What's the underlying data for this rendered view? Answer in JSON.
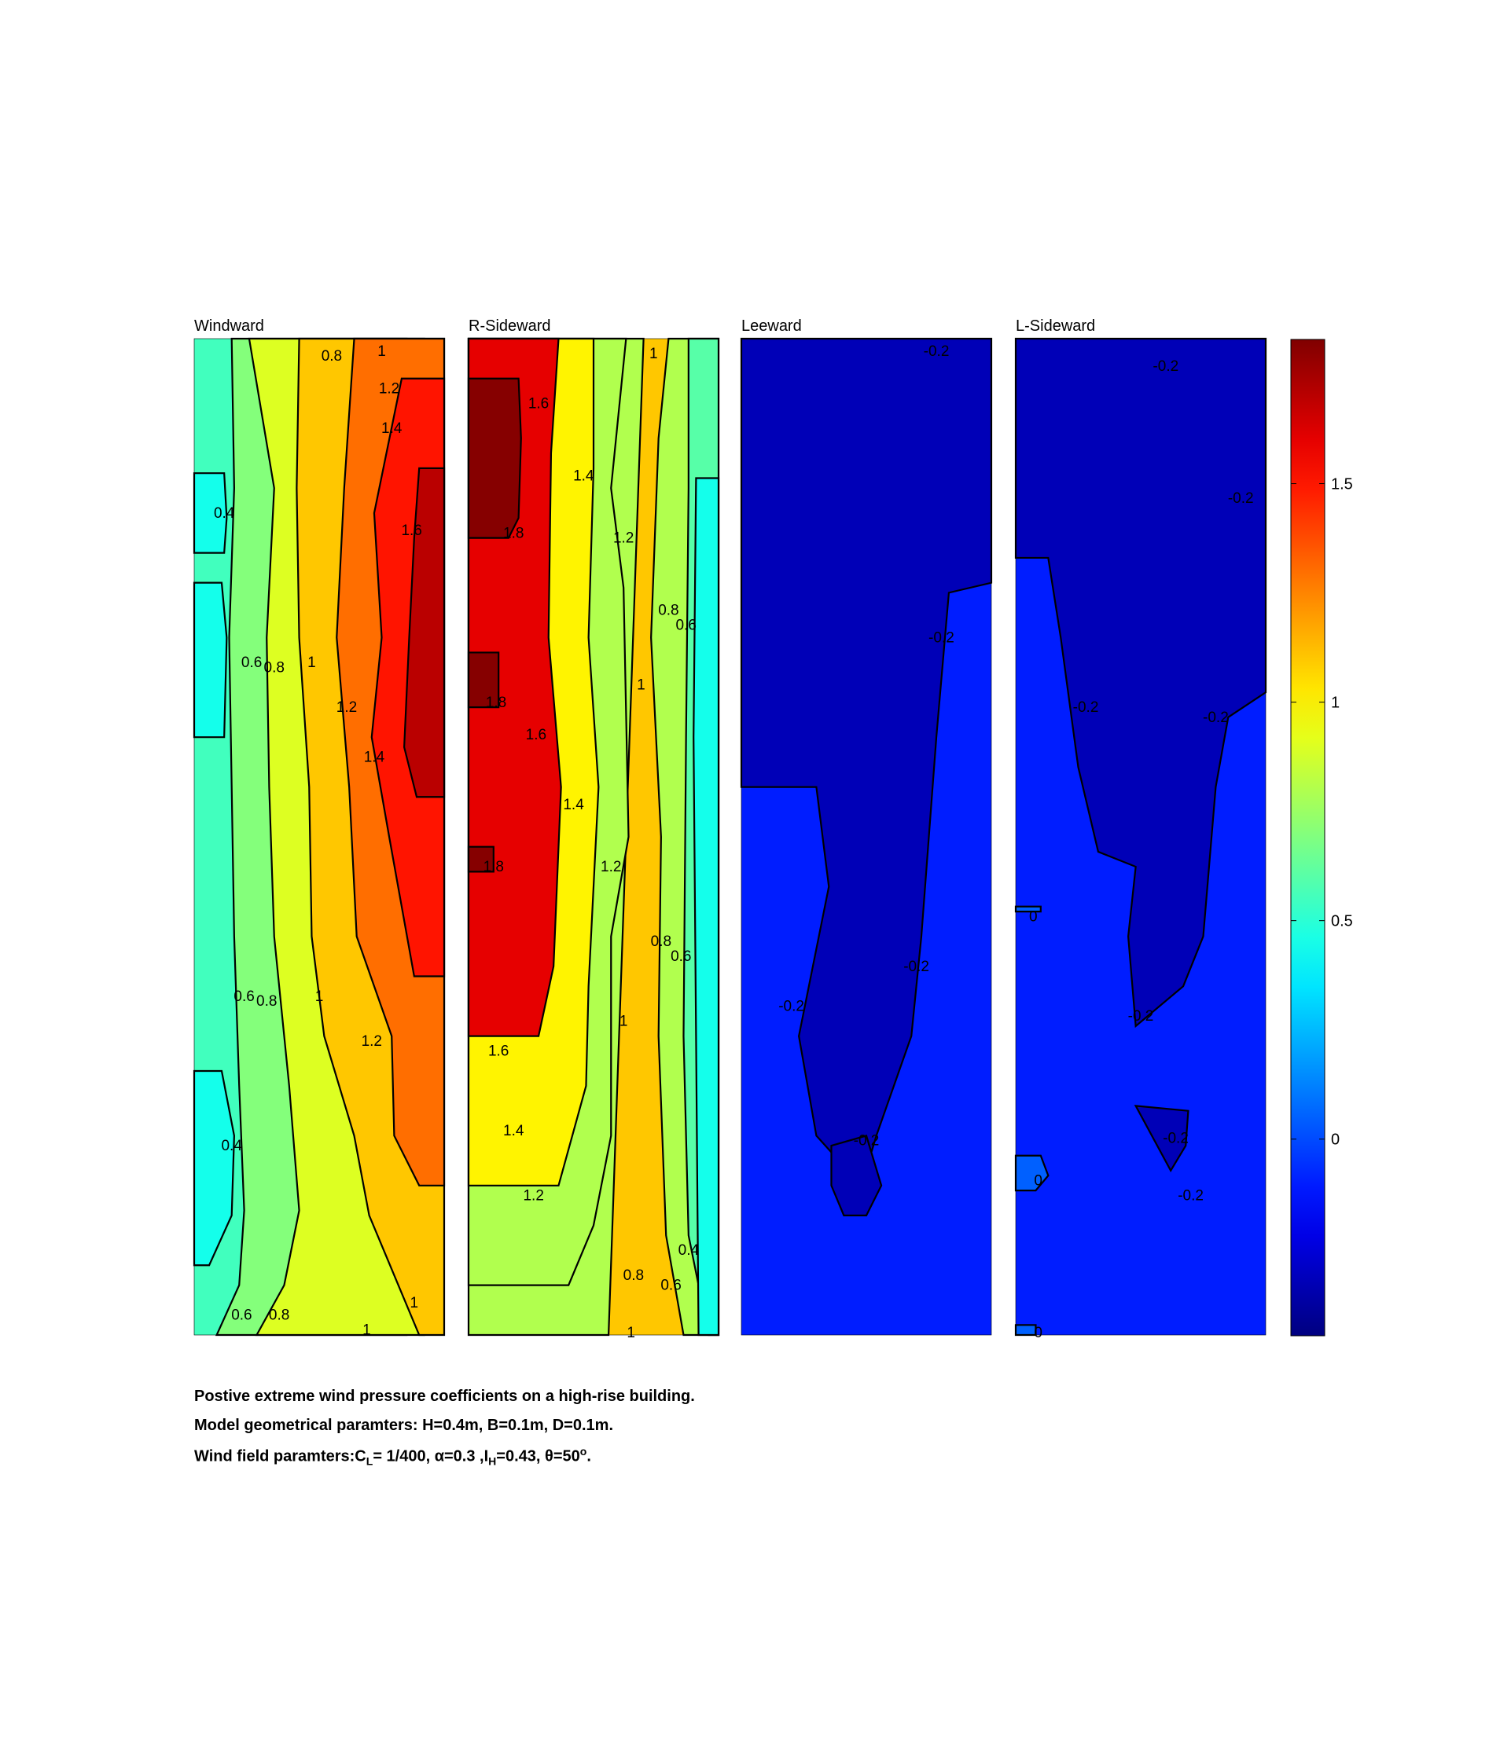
{
  "chart_data": {
    "type": "contour",
    "panels": [
      {
        "title": "Windward",
        "levels": [
          0.4,
          0.4,
          0.6,
          0.6,
          0.8,
          1,
          1.2,
          1.2,
          1.4,
          1.4,
          1.6,
          1.6
        ],
        "contour_labels": [
          "0.8",
          "1",
          "1.2",
          "1.4",
          "0.4",
          "1.6",
          "0.6",
          "0.8",
          "1",
          "1.2",
          "1.4",
          "0.6",
          "0.8",
          "1",
          "1.2",
          "0.4",
          "0.6",
          "0.8",
          "1",
          "1"
        ]
      },
      {
        "title": "R-Sideward",
        "levels": [
          1.8,
          1.6,
          1.4,
          1.2,
          1,
          0.8,
          0.6,
          0.4
        ],
        "contour_labels": [
          "1",
          "1.6",
          "1.4",
          "1.8",
          "1.2",
          "0.8",
          "0.6",
          "1",
          "1.8",
          "1.6",
          "1.4",
          "1.8",
          "1.2",
          "0.8",
          "0.6",
          "1",
          "1.6",
          "1.4",
          "1.2",
          "0.4",
          "0.8",
          "0.6",
          "1"
        ]
      },
      {
        "title": "Leeward",
        "levels": [
          -0.2,
          0
        ],
        "contour_labels": [
          "-0.2",
          "-0.2",
          "-0.2",
          "-0.2",
          "-0.2"
        ]
      },
      {
        "title": "L-Sideward",
        "levels": [
          -0.2,
          0
        ],
        "contour_labels": [
          "-0.2",
          "-0.2",
          "-0.2",
          "-0.2",
          "0",
          "-0.2",
          "-0.2",
          "0",
          "-0.2",
          "0"
        ]
      }
    ],
    "colorbar": {
      "colormap": "jet",
      "range": [
        -0.45,
        1.83
      ],
      "ticks": [
        "1.5",
        "1",
        "0.5",
        "0"
      ],
      "tick_values": [
        1.5,
        1,
        0.5,
        0
      ]
    },
    "caption": {
      "line1": "Postive extreme  wind pressure coefficients on a high-rise building.",
      "line2": "Model geometrical paramters: H=0.4m, B=0.1m, D=0.1m.",
      "line3_prefix": "Wind field paramters:C",
      "line3_sub1": "L",
      "line3_mid1": "= 1/400, α=0.3 ,I",
      "line3_sub2": "H",
      "line3_mid2": "=0.43, θ=50",
      "line3_sup": "o",
      "line3_end": "."
    }
  }
}
